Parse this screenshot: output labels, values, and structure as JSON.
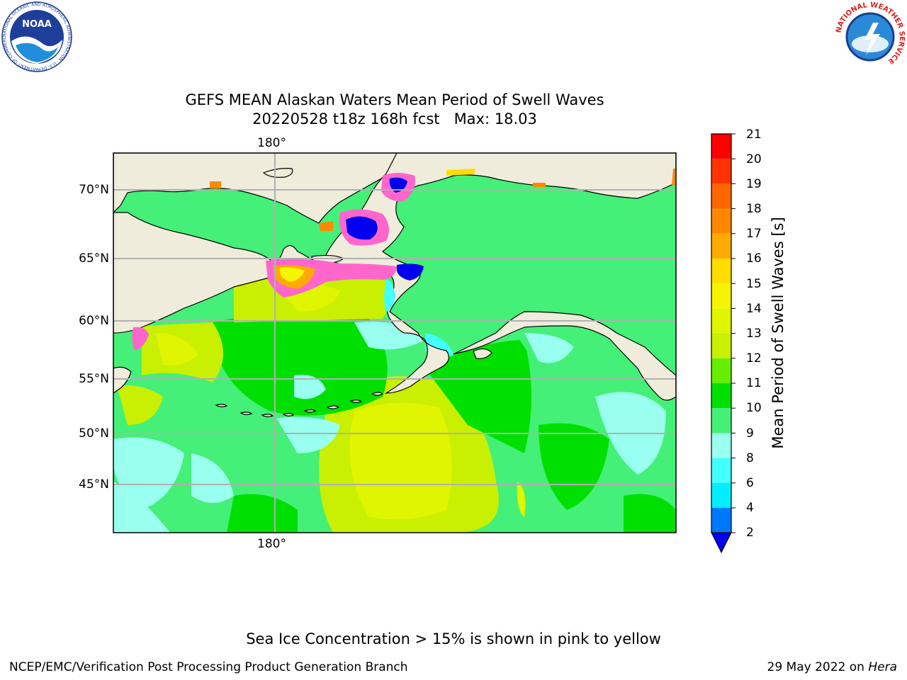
{
  "header": {
    "title_line1": "GEFS MEAN Alaskan Waters Mean Period of Swell Waves",
    "title_line2": "20220528 t18z 168h fcst   Max: 18.03",
    "noaa_logo_text": "NOAA",
    "noaa_ring_text": "NATIONAL OCEANIC AND ATMOSPHERIC ADMINISTRATION · U.S. DEPARTMENT OF COMMERCE",
    "nws_ring_text": "NATIONAL WEATHER SERVICE"
  },
  "map": {
    "lon_label_top": "180°",
    "lon_label_bottom": "180°",
    "lat_labels": [
      "70°N",
      "65°N",
      "60°N",
      "55°N",
      "50°N",
      "45°N"
    ],
    "colors": {
      "land": "#efecdc",
      "coast": "#000000",
      "grid": "#b0b0b0",
      "sea_ice": "#ff66cc"
    }
  },
  "colorbar": {
    "label": "Mean Period of Swell Waves [s]",
    "ticks": [
      "21",
      "20",
      "19",
      "18",
      "17",
      "16",
      "15",
      "14",
      "13",
      "12",
      "11",
      "10",
      "9",
      "8",
      "6",
      "4",
      "2"
    ],
    "levels_top_to_bottom": [
      {
        "from": 20,
        "to": 21,
        "color": "#ff0000"
      },
      {
        "from": 19,
        "to": 20,
        "color": "#ff3300"
      },
      {
        "from": 18,
        "to": 19,
        "color": "#ff6600"
      },
      {
        "from": 17,
        "to": 18,
        "color": "#ff8800"
      },
      {
        "from": 16,
        "to": 17,
        "color": "#ffaa00"
      },
      {
        "from": 15,
        "to": 16,
        "color": "#ffdd00"
      },
      {
        "from": 14,
        "to": 15,
        "color": "#f5f500"
      },
      {
        "from": 13,
        "to": 14,
        "color": "#e0f500"
      },
      {
        "from": 12,
        "to": 13,
        "color": "#c8f000"
      },
      {
        "from": 11,
        "to": 12,
        "color": "#66ee00"
      },
      {
        "from": 10,
        "to": 11,
        "color": "#00e000"
      },
      {
        "from": 9,
        "to": 10,
        "color": "#44f077"
      },
      {
        "from": 8,
        "to": 9,
        "color": "#99ffee"
      },
      {
        "from": 6,
        "to": 8,
        "color": "#44ffff"
      },
      {
        "from": 4,
        "to": 6,
        "color": "#00eeff"
      },
      {
        "from": 2,
        "to": 4,
        "color": "#0077ff"
      },
      {
        "from": 0,
        "to": 2,
        "color": "#0000ee"
      }
    ]
  },
  "note": "Sea Ice Concentration > 15% is shown in pink to yellow",
  "footer": {
    "left": "NCEP/EMC/Verification Post Processing Product Generation Branch",
    "right_date": "29 May 2022 on",
    "right_host": "Hera"
  }
}
